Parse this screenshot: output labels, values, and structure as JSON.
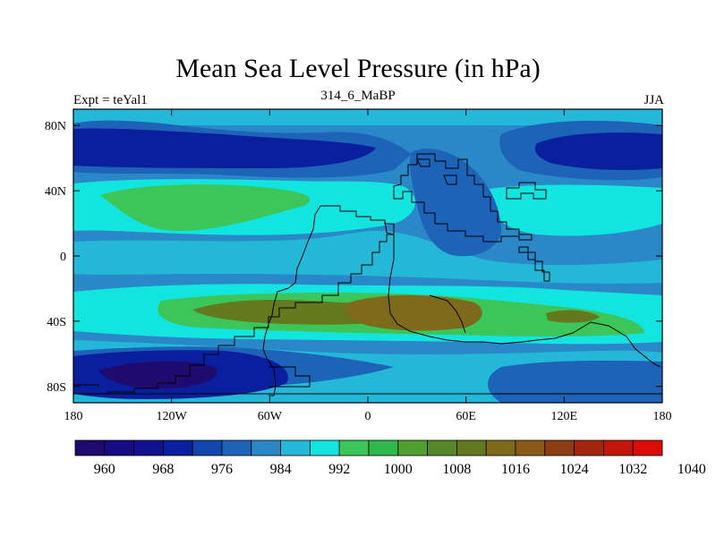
{
  "title": "Mean Sea Level Pressure (in hPa)",
  "experiment_label": "Expt = teYal1",
  "period_label": "314_6_MaBP",
  "season_label": "JJA",
  "map": {
    "lon_range": [
      -180,
      180
    ],
    "lat_range": [
      -90,
      90
    ],
    "x_ticks": [
      {
        "value": -180,
        "label": "180"
      },
      {
        "value": -120,
        "label": "120W"
      },
      {
        "value": -60,
        "label": "60W"
      },
      {
        "value": 0,
        "label": "0"
      },
      {
        "value": 60,
        "label": "60E"
      },
      {
        "value": 120,
        "label": "120E"
      },
      {
        "value": 180,
        "label": "180"
      }
    ],
    "y_ticks": [
      {
        "value": 80,
        "label": "80N"
      },
      {
        "value": 40,
        "label": "40N"
      },
      {
        "value": 0,
        "label": "0"
      },
      {
        "value": -40,
        "label": "40S"
      },
      {
        "value": -80,
        "label": "80S"
      }
    ]
  },
  "colorbar": {
    "colors": [
      "#1f0a6e",
      "#180c84",
      "#10128f",
      "#0a1f9e",
      "#1246ad",
      "#1d63b8",
      "#2a88c8",
      "#23b8d8",
      "#12e4e0",
      "#3cc65a",
      "#2fb84c",
      "#4f9e2e",
      "#56882a",
      "#64781e",
      "#7d6a1a",
      "#8a5a18",
      "#8c3e12",
      "#a2260e",
      "#c2160a",
      "#dc0c08"
    ],
    "labels": [
      "960",
      "968",
      "976",
      "984",
      "992",
      "1000",
      "1008",
      "1016",
      "1024",
      "1032",
      "1040"
    ]
  }
}
